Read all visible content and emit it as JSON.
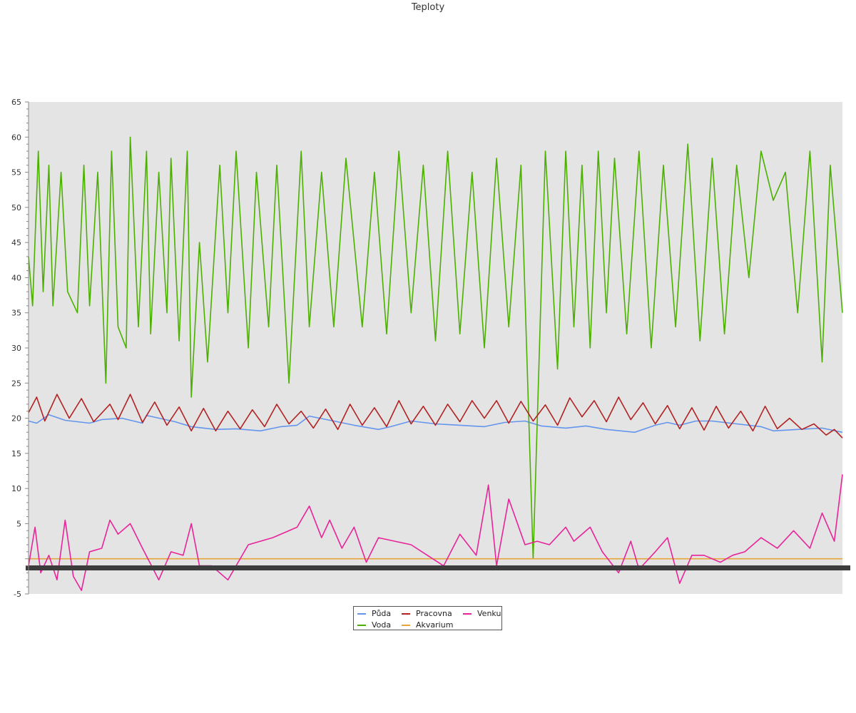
{
  "chart_data": {
    "type": "line",
    "title": "Teploty",
    "xlabel": "",
    "ylabel": "",
    "ylim": [
      -5,
      65
    ],
    "yticks": [
      -5,
      5,
      10,
      15,
      20,
      25,
      30,
      35,
      40,
      45,
      50,
      55,
      60,
      65
    ],
    "grid": false,
    "legend_position": "bottom-center",
    "background_color": "#e4e4e4",
    "xrange": [
      0,
      1
    ],
    "series": [
      {
        "name": "Půda",
        "color": "#6495ed",
        "x": [
          0,
          0.01,
          0.025,
          0.045,
          0.075,
          0.09,
          0.115,
          0.14,
          0.145,
          0.18,
          0.2,
          0.23,
          0.255,
          0.285,
          0.31,
          0.33,
          0.345,
          0.375,
          0.4,
          0.43,
          0.445,
          0.47,
          0.5,
          0.53,
          0.56,
          0.585,
          0.61,
          0.63,
          0.66,
          0.685,
          0.71,
          0.745,
          0.77,
          0.785,
          0.8,
          0.82,
          0.84,
          0.87,
          0.9,
          0.915,
          0.945,
          0.975,
          1.0
        ],
        "values": [
          19.6,
          19.3,
          20.5,
          19.7,
          19.3,
          19.8,
          20.0,
          19.3,
          20.4,
          19.5,
          18.8,
          18.4,
          18.5,
          18.2,
          18.8,
          19.0,
          20.3,
          19.6,
          19.0,
          18.4,
          18.8,
          19.6,
          19.2,
          19.0,
          18.8,
          19.4,
          19.6,
          18.9,
          18.6,
          18.9,
          18.4,
          18.0,
          19.0,
          19.4,
          19.0,
          19.6,
          19.6,
          19.2,
          18.8,
          18.2,
          18.4,
          18.6,
          18.0
        ]
      },
      {
        "name": "Voda",
        "color": "#4cb000",
        "x": [
          0,
          0.005,
          0.012,
          0.018,
          0.025,
          0.03,
          0.04,
          0.048,
          0.06,
          0.068,
          0.075,
          0.085,
          0.095,
          0.102,
          0.11,
          0.12,
          0.125,
          0.135,
          0.145,
          0.15,
          0.16,
          0.17,
          0.175,
          0.185,
          0.195,
          0.2,
          0.21,
          0.22,
          0.235,
          0.245,
          0.255,
          0.27,
          0.28,
          0.295,
          0.305,
          0.32,
          0.335,
          0.345,
          0.36,
          0.375,
          0.39,
          0.41,
          0.425,
          0.44,
          0.455,
          0.47,
          0.485,
          0.5,
          0.515,
          0.53,
          0.545,
          0.56,
          0.575,
          0.59,
          0.605,
          0.62,
          0.635,
          0.65,
          0.66,
          0.67,
          0.68,
          0.69,
          0.7,
          0.71,
          0.72,
          0.735,
          0.75,
          0.765,
          0.78,
          0.795,
          0.81,
          0.825,
          0.84,
          0.855,
          0.87,
          0.885,
          0.9,
          0.915,
          0.93,
          0.945,
          0.96,
          0.975,
          0.985,
          1.0
        ],
        "values": [
          43,
          36,
          58,
          38,
          56,
          36,
          55,
          38,
          35,
          56,
          36,
          55,
          25,
          58,
          33,
          30,
          60,
          33,
          58,
          32,
          55,
          35,
          57,
          31,
          58,
          23,
          45,
          28,
          56,
          35,
          58,
          30,
          55,
          33,
          56,
          25,
          58,
          33,
          55,
          33,
          57,
          33,
          55,
          32,
          58,
          35,
          56,
          31,
          58,
          32,
          55,
          30,
          57,
          33,
          56,
          0,
          58,
          27,
          58,
          33,
          56,
          30,
          58,
          35,
          57,
          32,
          58,
          30,
          56,
          33,
          59,
          31,
          57,
          32,
          56,
          40,
          58,
          51,
          55,
          35,
          58,
          28,
          56,
          35
        ]
      },
      {
        "name": "Pracovna",
        "color": "#b22222",
        "x": [
          0,
          0.01,
          0.02,
          0.035,
          0.05,
          0.065,
          0.08,
          0.1,
          0.11,
          0.125,
          0.14,
          0.155,
          0.17,
          0.185,
          0.2,
          0.215,
          0.23,
          0.245,
          0.26,
          0.275,
          0.29,
          0.305,
          0.32,
          0.335,
          0.35,
          0.365,
          0.38,
          0.395,
          0.41,
          0.425,
          0.44,
          0.455,
          0.47,
          0.485,
          0.5,
          0.515,
          0.53,
          0.545,
          0.56,
          0.575,
          0.59,
          0.605,
          0.62,
          0.635,
          0.65,
          0.665,
          0.68,
          0.695,
          0.71,
          0.725,
          0.74,
          0.755,
          0.77,
          0.785,
          0.8,
          0.815,
          0.83,
          0.845,
          0.86,
          0.875,
          0.89,
          0.905,
          0.92,
          0.935,
          0.95,
          0.965,
          0.98,
          0.99,
          1.0
        ],
        "values": [
          20.8,
          23.0,
          19.6,
          23.4,
          20.0,
          22.8,
          19.5,
          22.0,
          19.8,
          23.4,
          19.4,
          22.3,
          19.0,
          21.6,
          18.2,
          21.4,
          18.2,
          21.0,
          18.5,
          21.2,
          18.8,
          22.0,
          19.2,
          21.0,
          18.6,
          21.3,
          18.4,
          22.0,
          19.0,
          21.5,
          18.8,
          22.5,
          19.2,
          21.7,
          19.0,
          22.0,
          19.5,
          22.5,
          20.0,
          22.5,
          19.3,
          22.4,
          19.6,
          21.9,
          19.0,
          22.9,
          20.2,
          22.5,
          19.5,
          23.0,
          19.8,
          22.2,
          19.2,
          21.8,
          18.5,
          21.5,
          18.3,
          21.7,
          18.6,
          21.0,
          18.2,
          21.7,
          18.5,
          20.0,
          18.4,
          19.2,
          17.6,
          18.4,
          17.2
        ]
      },
      {
        "name": "Akvarium",
        "color": "#e8a33a",
        "x": [
          0,
          1
        ],
        "values": [
          0,
          0
        ]
      },
      {
        "name": "Venku",
        "color": "#e8249a",
        "x": [
          0,
          0.008,
          0.015,
          0.025,
          0.035,
          0.045,
          0.055,
          0.065,
          0.075,
          0.09,
          0.1,
          0.11,
          0.125,
          0.14,
          0.16,
          0.175,
          0.19,
          0.2,
          0.21,
          0.225,
          0.245,
          0.27,
          0.3,
          0.33,
          0.345,
          0.36,
          0.37,
          0.385,
          0.4,
          0.415,
          0.43,
          0.45,
          0.47,
          0.49,
          0.51,
          0.53,
          0.55,
          0.565,
          0.575,
          0.59,
          0.61,
          0.625,
          0.64,
          0.66,
          0.67,
          0.69,
          0.705,
          0.725,
          0.74,
          0.75,
          0.77,
          0.785,
          0.8,
          0.815,
          0.83,
          0.85,
          0.865,
          0.88,
          0.9,
          0.92,
          0.94,
          0.96,
          0.975,
          0.99,
          1.0
        ],
        "values": [
          -1.0,
          4.5,
          -2.0,
          0.5,
          -3.0,
          5.5,
          -2.5,
          -4.5,
          1.0,
          1.5,
          5.5,
          3.5,
          5.0,
          1.5,
          -3.0,
          1.0,
          0.5,
          5.0,
          -1.0,
          -1.0,
          -3.0,
          2.0,
          3.0,
          4.5,
          7.5,
          3.0,
          5.5,
          1.5,
          4.5,
          -0.5,
          3.0,
          2.5,
          2.0,
          0.5,
          -1.0,
          3.5,
          0.5,
          10.5,
          -1.0,
          8.5,
          2.0,
          2.5,
          2.0,
          4.5,
          2.5,
          4.5,
          1.0,
          -2.0,
          2.5,
          -1.5,
          1.0,
          3.0,
          -3.5,
          0.5,
          0.5,
          -0.5,
          0.5,
          1.0,
          3.0,
          1.5,
          4.0,
          1.5,
          6.5,
          2.5,
          12.0
        ]
      }
    ]
  }
}
